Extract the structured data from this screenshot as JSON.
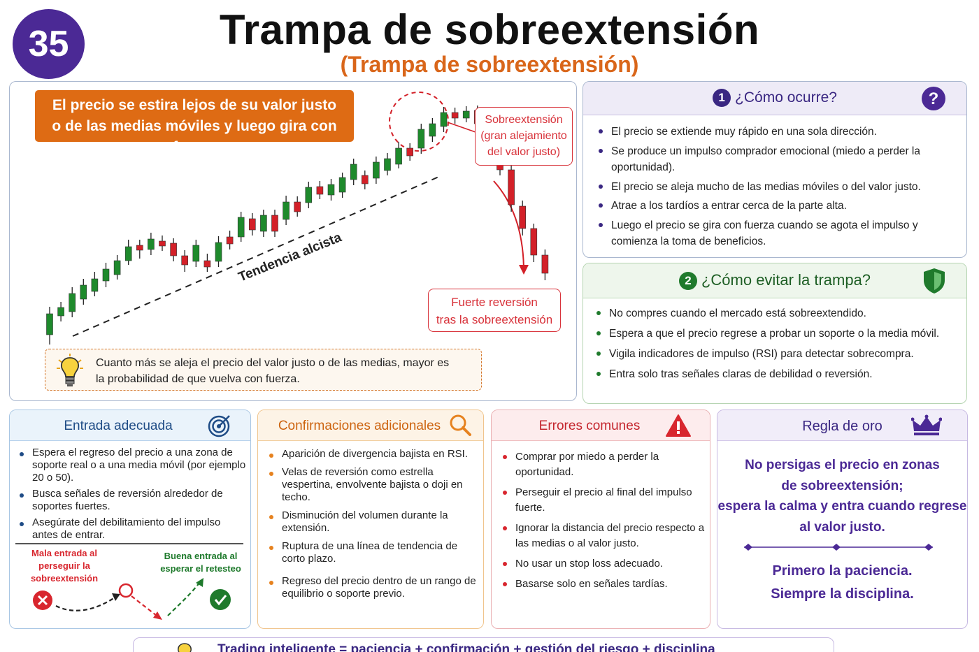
{
  "header": {
    "number": "35",
    "title": "Trampa de sobreextensión",
    "subtitle": "(Trampa de sobreextensión)"
  },
  "chart": {
    "banner_line1": "El precio se estira lejos de su valor justo",
    "banner_line2": "o de las medias móviles y luego gira con fuerza",
    "overextension_callout": [
      "Sobreextensión",
      "(gran alejamiento",
      "del valor justo)"
    ],
    "trend_label": "Tendencia alcista",
    "reversal_callout": [
      "Fuerte reversión",
      "tras la sobreextensión"
    ],
    "tip_line1": "Cuanto más se aleja el precio del valor justo o de las medias, mayor es",
    "tip_line2": "la probabilidad de que vuelva con fuerza.",
    "colors": {
      "bull": "#1e8a2c",
      "bear": "#d32028",
      "accent": "#de6b14"
    }
  },
  "how": {
    "number": "1",
    "title": "¿Cómo ocurre?",
    "items": [
      "El precio se extiende muy rápido en una sola dirección.",
      "Se produce un impulso comprador emocional (miedo a perder la oportunidad).",
      "El precio se aleja mucho de las medias móviles o del valor justo.",
      "Atrae a los tardíos a entrar cerca de la parte alta.",
      "Luego el precio se gira con fuerza cuando se agota el impulso y comienza la toma de beneficios."
    ]
  },
  "avoid": {
    "number": "2",
    "title": "¿Cómo evitar la trampa?",
    "items": [
      "No compres cuando el mercado está sobreextendido.",
      "Espera a que el precio regrese a probar un soporte o la media móvil.",
      "Vigila indicadores de impulso (RSI) para detectar sobrecompra.",
      "Entra solo tras señales claras de debilidad o reversión."
    ]
  },
  "entry": {
    "title": "Entrada adecuada",
    "items": [
      "Espera el regreso del precio a una zona de soporte real o a una media móvil (por ejemplo 20 o 50).",
      "Busca señales de reversión alrededor de soportes fuertes.",
      "Asegúrate del debilitamiento del impulso antes de entrar."
    ],
    "bad_label": "Mala entrada al perseguir la sobreextensión",
    "good_label": "Buena entrada al esperar el retesteo"
  },
  "confirm": {
    "title": "Confirmaciones adicionales",
    "items": [
      "Aparición de divergencia bajista en RSI.",
      "Velas de reversión como estrella vespertina, envolvente bajista o doji en techo.",
      "Disminución del volumen durante la extensión.",
      "Ruptura de una línea de tendencia de corto plazo.",
      "Regreso del precio dentro de un rango de equilibrio o soporte previo."
    ]
  },
  "errors": {
    "title": "Errores comunes",
    "items": [
      "Comprar por miedo a perder la oportunidad.",
      "Perseguir el precio al final del impulso fuerte.",
      "Ignorar la distancia del precio respecto a las medias o al valor justo.",
      "No usar un stop loss adecuado.",
      "Basarse solo en señales tardías."
    ]
  },
  "golden": {
    "title": "Regla de oro",
    "lines": [
      "No persigas el precio en zonas",
      "de sobreextensión;",
      "espera la calma y entra cuando regrese",
      "al valor justo."
    ],
    "sub_line1": "Primero la paciencia.",
    "sub_line2": "Siempre la disciplina."
  },
  "footer": {
    "text": "Trading inteligente = paciencia + confirmación + gestión del riesgo + disciplina"
  }
}
